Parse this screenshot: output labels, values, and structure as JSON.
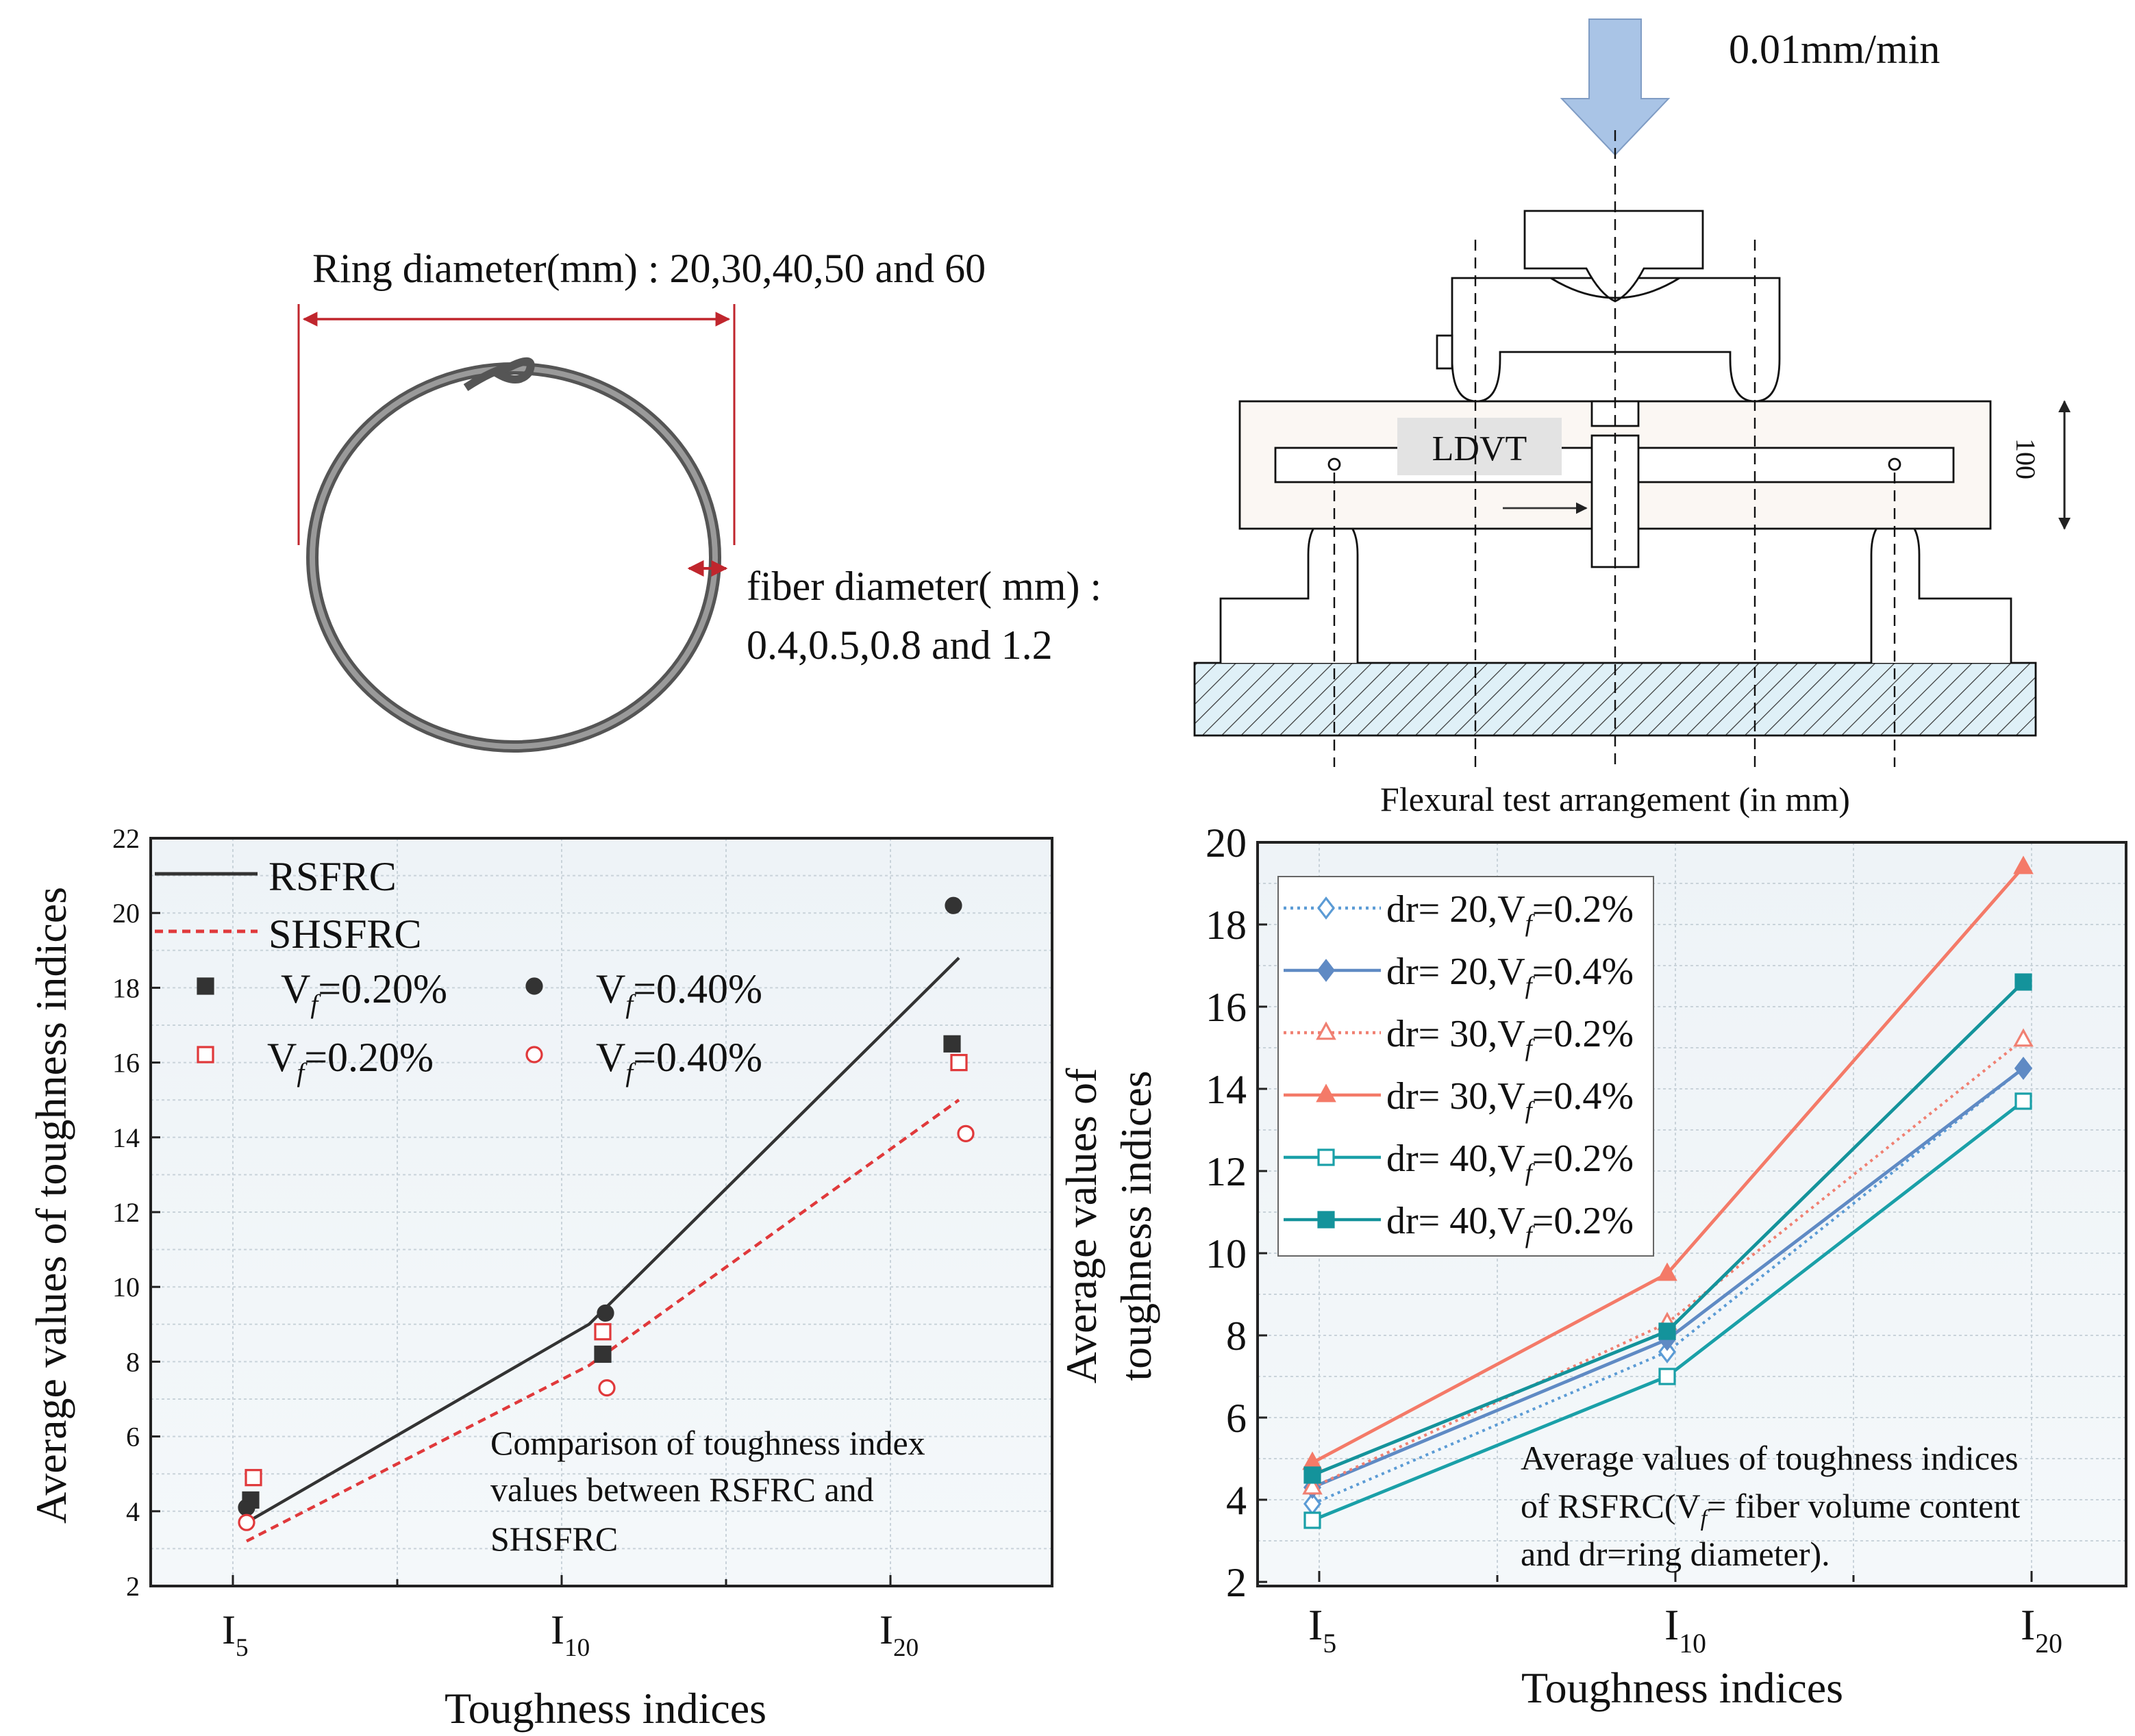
{
  "ring": {
    "ring_label": "Ring diameter(mm) : 20,30,40,50 and 60",
    "fiber_label_1": "fiber diameter( mm) :",
    "fiber_label_2": "0.4,0.5,0.8 and 1.2",
    "dim_color": "#c0262d",
    "ring_color": "#6e6e6e"
  },
  "apparatus": {
    "load_rate": "0.01mm/min",
    "sensor_label": "LDVT",
    "height_label": "100",
    "caption": "Flexural test arrangement (in mm)",
    "arrow_color": "#a9c4e6",
    "base_color": "#dff0f7"
  },
  "chart_data": [
    {
      "type": "line+scatter",
      "ylim": [
        2,
        22
      ],
      "yticks": [
        "2",
        "4",
        "6",
        "8",
        "10",
        "12",
        "14",
        "16",
        "18",
        "20",
        "22"
      ],
      "categories": [
        {
          "main": "I",
          "sub": "5"
        },
        {
          "main": "I",
          "sub": "10"
        },
        {
          "main": "I",
          "sub": "20"
        }
      ],
      "xlabel": "Toughness indices",
      "ylabel": "Average values of toughness indices",
      "annotation": [
        "Comparison of toughness index",
        "values between RSFRC and",
        "SHSFRC"
      ],
      "grid": true,
      "legend_position": "top-left",
      "series": [
        {
          "name": "RSFRC",
          "style": "solid-line",
          "color": "#333333",
          "values": [
            3.7,
            9.0,
            18.8
          ]
        },
        {
          "name": "SHSFRC",
          "style": "dashed-line",
          "color": "#e0393b",
          "values": [
            3.2,
            7.9,
            15.0
          ]
        },
        {
          "name": {
            "pre": "V",
            "sub": "f",
            "post": "=0.20%"
          },
          "style": "filled-square",
          "color": "#333333",
          "values": [
            4.3,
            8.2,
            16.5
          ]
        },
        {
          "name": {
            "pre": "V",
            "sub": "f",
            "post": "=0.40%"
          },
          "style": "filled-circle",
          "color": "#333333",
          "values": [
            4.1,
            9.3,
            20.2
          ]
        },
        {
          "name": {
            "pre": "V",
            "sub": "f",
            "post": "=0.20%"
          },
          "style": "open-square",
          "color": "#e0393b",
          "values": [
            4.9,
            8.8,
            16.0
          ]
        },
        {
          "name": {
            "pre": "V",
            "sub": "f",
            "post": "=0.40%"
          },
          "style": "open-circle",
          "color": "#e0393b",
          "values": [
            3.7,
            7.3,
            14.1
          ]
        }
      ]
    },
    {
      "type": "line",
      "ylim": [
        2,
        20
      ],
      "yticks": [
        "2",
        "4",
        "6",
        "8",
        "10",
        "12",
        "14",
        "16",
        "18",
        "20"
      ],
      "categories": [
        {
          "main": "I",
          "sub": "5"
        },
        {
          "main": "I",
          "sub": "10"
        },
        {
          "main": "I",
          "sub": "20"
        }
      ],
      "xlabel": "Toughness indices",
      "ylabel": [
        "Average values of",
        "toughness indices"
      ],
      "annotation": [
        {
          "text": "Average values of toughness indices"
        },
        {
          "pre": "of RSFRC(V",
          "sub": "f",
          "post": "= fiber volume content"
        },
        {
          "text": "and dr=ring diameter)."
        }
      ],
      "grid": true,
      "legend_position": "top-left",
      "series": [
        {
          "name": {
            "pre": "dr= 20,V",
            "sub": "f",
            "post": "=0.2%"
          },
          "style": "dotted",
          "marker": "open-diamond",
          "color": "#5b9bd5",
          "values": [
            3.9,
            7.6,
            14.5
          ]
        },
        {
          "name": {
            "pre": "dr= 20,V",
            "sub": "f",
            "post": "=0.4%"
          },
          "style": "solid",
          "marker": "filled-diamond",
          "color": "#5f8ac4",
          "values": [
            4.3,
            7.9,
            14.5
          ]
        },
        {
          "name": {
            "pre": "dr= 30,V",
            "sub": "f",
            "post": "=0.2%"
          },
          "style": "dotted",
          "marker": "open-triangle",
          "color": "#f08072",
          "values": [
            4.3,
            8.3,
            15.2
          ]
        },
        {
          "name": {
            "pre": "dr= 30,V",
            "sub": "f",
            "post": "=0.4%"
          },
          "style": "solid",
          "marker": "filled-triangle",
          "color": "#f47a68",
          "values": [
            4.9,
            9.5,
            19.4
          ]
        },
        {
          "name": {
            "pre": "dr= 40,V",
            "sub": "f",
            "post": "=0.2%"
          },
          "style": "solid",
          "marker": "open-square",
          "color": "#1aa0a8",
          "values": [
            3.5,
            7.0,
            13.7
          ]
        },
        {
          "name": {
            "pre": "dr= 40,V",
            "sub": "f",
            "post": "=0.2%"
          },
          "style": "solid",
          "marker": "filled-square",
          "color": "#14939b",
          "values": [
            4.6,
            8.1,
            16.6
          ]
        }
      ]
    }
  ]
}
